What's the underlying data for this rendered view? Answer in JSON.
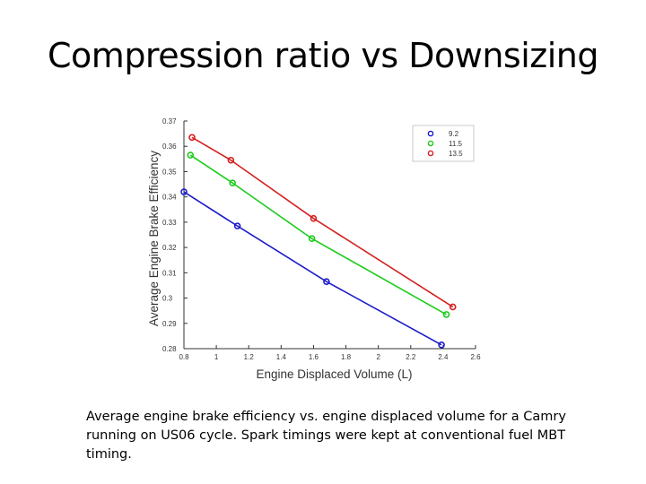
{
  "slide": {
    "title": "Compression ratio vs Downsizing",
    "caption": "Average engine brake efficiency vs. engine displaced volume for a Camry running on US06 cycle. Spark timings were kept at conventional fuel MBT timing."
  },
  "chart_data": {
    "type": "line",
    "xlabel": "Engine Displaced Volume (L)",
    "ylabel": "Average Engine Brake Efficiency",
    "xlim": [
      0.8,
      2.6
    ],
    "ylim": [
      0.28,
      0.37
    ],
    "xticks": [
      "0.8",
      "1",
      "1.2",
      "1.4",
      "1.6",
      "1.8",
      "2",
      "2.2",
      "2.4",
      "2.6"
    ],
    "yticks": [
      "0.28",
      "0.29",
      "0.3",
      "0.31",
      "0.32",
      "0.33",
      "0.34",
      "0.35",
      "0.36",
      "0.37"
    ],
    "grid": false,
    "legend_position": "top-right",
    "series": [
      {
        "name": "9.2",
        "color": "#1c1cc8",
        "x": [
          0.8,
          1.13,
          1.68,
          2.39
        ],
        "y": [
          0.342,
          0.3285,
          0.3065,
          0.2815
        ]
      },
      {
        "name": "11.5",
        "color": "#1ccc1c",
        "x": [
          0.84,
          1.1,
          1.59,
          2.42
        ],
        "y": [
          0.3565,
          0.3455,
          0.3235,
          0.2935
        ]
      },
      {
        "name": "13.5",
        "color": "#d42020",
        "x": [
          0.85,
          1.09,
          1.6,
          2.46
        ],
        "y": [
          0.3635,
          0.3545,
          0.3315,
          0.2965
        ]
      }
    ]
  }
}
